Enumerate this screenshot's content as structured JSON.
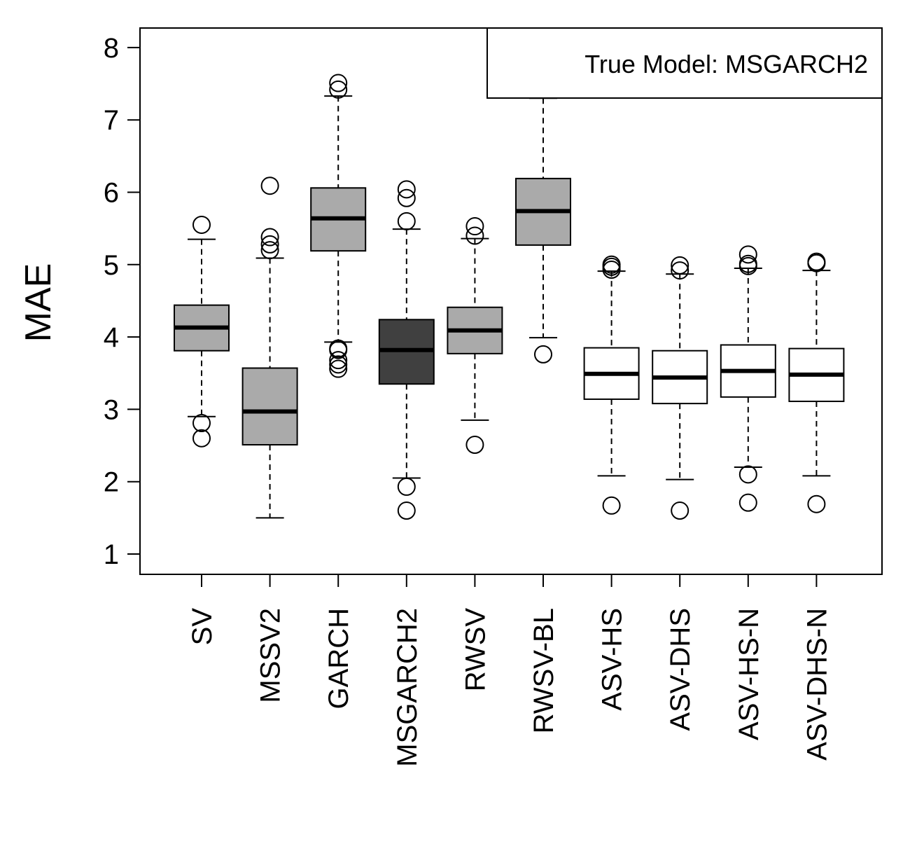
{
  "chart_data": {
    "type": "boxplot",
    "ylabel": "MAE",
    "xlabel": "",
    "ylim": [
      0.75,
      8.3
    ],
    "yticks": [
      1,
      2,
      3,
      4,
      5,
      6,
      7,
      8
    ],
    "legend": {
      "text": "True Model: MSGARCH2",
      "placement": "top-right"
    },
    "colors": {
      "light": "#aaaaaa",
      "dark": "#404040",
      "white": "#ffffff",
      "stroke": "#000000"
    },
    "categories": [
      "SV",
      "MSSV2",
      "GARCH",
      "MSGARCH2",
      "RWSV",
      "RWSV-BL",
      "ASV-HS",
      "ASV-DHS",
      "ASV-HS-N",
      "ASV-DHS-N"
    ],
    "boxes": [
      {
        "name": "SV",
        "fill": "light",
        "whisker_low": 2.9,
        "q1": 3.81,
        "median": 4.13,
        "q3": 4.44,
        "whisker_high": 5.35,
        "outliers": [
          2.6,
          2.81,
          5.55
        ]
      },
      {
        "name": "MSSV2",
        "fill": "light",
        "whisker_low": 1.5,
        "q1": 2.51,
        "median": 2.97,
        "q3": 3.57,
        "whisker_high": 5.09,
        "outliers": [
          5.2,
          5.28,
          5.38,
          6.09
        ]
      },
      {
        "name": "GARCH",
        "fill": "light",
        "whisker_low": 3.93,
        "q1": 5.19,
        "median": 5.64,
        "q3": 6.06,
        "whisker_high": 7.33,
        "outliers": [
          3.56,
          3.62,
          3.68,
          3.82,
          3.84,
          7.42,
          7.51
        ]
      },
      {
        "name": "MSGARCH2",
        "fill": "dark",
        "whisker_low": 2.05,
        "q1": 3.35,
        "median": 3.82,
        "q3": 4.24,
        "whisker_high": 5.49,
        "outliers": [
          1.6,
          1.93,
          5.6,
          5.92,
          6.04
        ]
      },
      {
        "name": "RWSV",
        "fill": "light",
        "whisker_low": 2.85,
        "q1": 3.77,
        "median": 4.09,
        "q3": 4.41,
        "whisker_high": 5.36,
        "outliers": [
          2.51,
          5.4,
          5.53
        ]
      },
      {
        "name": "RWSV-BL",
        "fill": "light",
        "whisker_low": 3.99,
        "q1": 5.27,
        "median": 5.74,
        "q3": 6.19,
        "whisker_high": 7.3,
        "outliers": [
          3.76
        ]
      },
      {
        "name": "ASV-HS",
        "fill": "white",
        "whisker_low": 2.08,
        "q1": 3.14,
        "median": 3.49,
        "q3": 3.85,
        "whisker_high": 4.91,
        "outliers": [
          1.67,
          4.93,
          4.97,
          5.0
        ]
      },
      {
        "name": "ASV-DHS",
        "fill": "white",
        "whisker_low": 2.03,
        "q1": 3.08,
        "median": 3.44,
        "q3": 3.81,
        "whisker_high": 4.87,
        "outliers": [
          1.6,
          4.92,
          4.99
        ]
      },
      {
        "name": "ASV-HS-N",
        "fill": "white",
        "whisker_low": 2.2,
        "q1": 3.17,
        "median": 3.53,
        "q3": 3.89,
        "whisker_high": 4.95,
        "outliers": [
          1.71,
          2.1,
          4.98,
          5.01,
          5.14
        ]
      },
      {
        "name": "ASV-DHS-N",
        "fill": "white",
        "whisker_low": 2.08,
        "q1": 3.11,
        "median": 3.48,
        "q3": 3.84,
        "whisker_high": 4.92,
        "outliers": [
          1.69,
          5.02,
          5.04
        ]
      }
    ]
  }
}
